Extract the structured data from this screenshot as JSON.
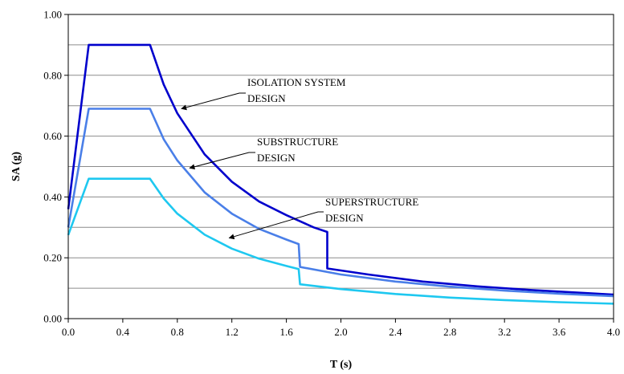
{
  "chart_data": {
    "type": "line",
    "title": "",
    "xlabel": "T (s)",
    "ylabel": "SA (g)",
    "xlim": [
      0,
      4.0
    ],
    "ylim": [
      0,
      1.0
    ],
    "x_ticks": [
      "0.0",
      "0.4",
      "0.8",
      "1.2",
      "1.6",
      "2.0",
      "2.4",
      "2.8",
      "3.2",
      "3.6",
      "4.0"
    ],
    "y_ticks": [
      "0.00",
      "0.20",
      "0.40",
      "0.60",
      "0.80",
      "1.00"
    ],
    "grid": "horizontal",
    "legend": "none",
    "series": [
      {
        "color": "#0000cc",
        "x": [
          0,
          0.15,
          0.6,
          0.7,
          0.8,
          1.0,
          1.2,
          1.4,
          1.6,
          1.8,
          1.9,
          1.9,
          2.2,
          2.6,
          3.0,
          3.4,
          3.8,
          4.0
        ],
        "y": [
          0.36,
          0.9,
          0.9,
          0.77,
          0.675,
          0.54,
          0.45,
          0.385,
          0.34,
          0.3,
          0.285,
          0.165,
          0.145,
          0.122,
          0.106,
          0.094,
          0.084,
          0.079
        ]
      },
      {
        "color": "#4a7fe8",
        "x": [
          0,
          0.15,
          0.6,
          0.7,
          0.8,
          1.0,
          1.2,
          1.4,
          1.6,
          1.69,
          1.7,
          2.0,
          2.4,
          2.8,
          3.2,
          3.6,
          4.0
        ],
        "y": [
          0.3,
          0.69,
          0.69,
          0.59,
          0.52,
          0.415,
          0.345,
          0.295,
          0.26,
          0.245,
          0.17,
          0.145,
          0.122,
          0.105,
          0.092,
          0.082,
          0.074
        ]
      },
      {
        "color": "#1ec8f0",
        "x": [
          0,
          0.15,
          0.6,
          0.7,
          0.8,
          1.0,
          1.2,
          1.4,
          1.6,
          1.69,
          1.7,
          2.0,
          2.4,
          2.8,
          3.2,
          3.6,
          4.0
        ],
        "y": [
          0.275,
          0.46,
          0.46,
          0.395,
          0.345,
          0.276,
          0.23,
          0.197,
          0.173,
          0.163,
          0.113,
          0.097,
          0.081,
          0.069,
          0.061,
          0.054,
          0.049
        ]
      }
    ],
    "annotations": [
      {
        "lines": [
          "ISOLATION SYSTEM",
          "DESIGN"
        ],
        "arrow_to": [
          0.83,
          0.69
        ]
      },
      {
        "lines": [
          "SUBSTRUCTURE",
          "DESIGN"
        ],
        "arrow_to": [
          0.89,
          0.495
        ]
      },
      {
        "lines": [
          "SUPERSTRUCTURE",
          "DESIGN"
        ],
        "arrow_to": [
          1.18,
          0.265
        ]
      }
    ]
  }
}
